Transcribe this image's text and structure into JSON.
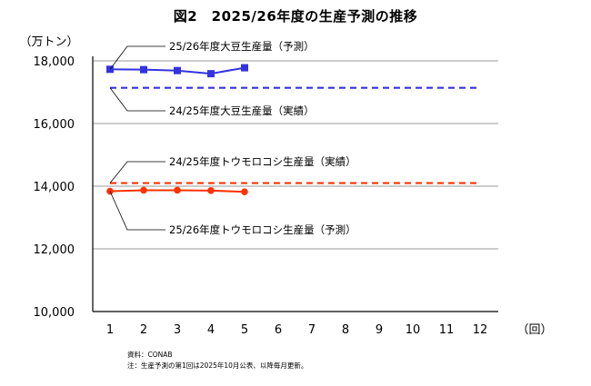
{
  "chart_data": {
    "type": "line",
    "title": "図2　2025/26年度の生産予測の推移",
    "y_unit_label": "（万トン）",
    "x_unit_label": "（回）",
    "x": [
      1,
      2,
      3,
      4,
      5,
      6,
      7,
      8,
      9,
      10,
      11,
      12
    ],
    "ylim": [
      10000,
      18000
    ],
    "yticks": [
      10000,
      12000,
      14000,
      16000,
      18000
    ],
    "ytick_labels": [
      "10,000",
      "12,000",
      "14,000",
      "16,000",
      "18,000"
    ],
    "grid": true,
    "series": [
      {
        "name": "25/26年度大豆生産量（予測）",
        "style": "solid",
        "marker": "square",
        "color": "#3333e0",
        "x": [
          1,
          2,
          3,
          4,
          5
        ],
        "values": [
          17730,
          17720,
          17690,
          17590,
          17780
        ]
      },
      {
        "name": "24/25年度大豆生産量（実績）",
        "style": "dashed",
        "color": "#3333e0",
        "x": [
          1,
          12
        ],
        "values": [
          17140,
          17140
        ]
      },
      {
        "name": "24/25年度トウモロコシ生産量（実績）",
        "style": "dashed",
        "color": "#ff3300",
        "x": [
          1,
          12
        ],
        "values": [
          14100,
          14100
        ]
      },
      {
        "name": "25/26年度トウモロコシ生産量（予測）",
        "style": "solid",
        "marker": "circle",
        "color": "#ff3300",
        "x": [
          1,
          2,
          3,
          4,
          5
        ],
        "values": [
          13840,
          13870,
          13870,
          13860,
          13820
        ]
      }
    ]
  },
  "footnotes": {
    "source": "資料：CONAB",
    "note": "注：生産予測の第1回は2025年10月公表、以降毎月更新。"
  }
}
